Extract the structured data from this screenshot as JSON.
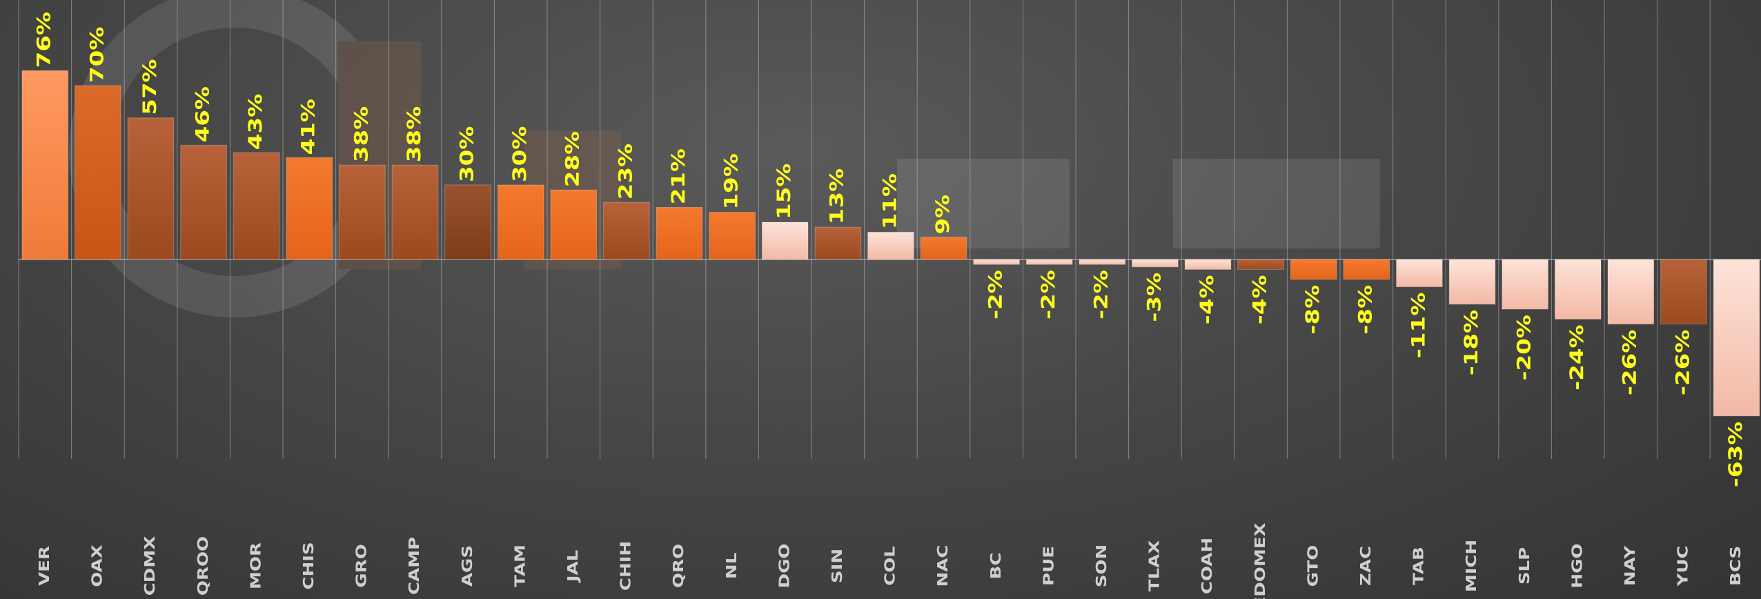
{
  "chart_data": {
    "type": "bar",
    "title": "",
    "xlabel": "",
    "ylabel": "",
    "ylim": [
      -63,
      76
    ],
    "grid": true,
    "label_color": "#ffff1a",
    "category_label_color": "#cfcfcf",
    "categories": [
      "VER",
      "OAX",
      "CDMX",
      "QROO",
      "MOR",
      "CHIS",
      "GRO",
      "CAMP",
      "AGS",
      "TAM",
      "JAL",
      "CHIH",
      "QRO",
      "NL",
      "DGO",
      "SIN",
      "COL",
      "NAC",
      "BC",
      "PUE",
      "SON",
      "TLAX",
      "COAH",
      "EDOMEX",
      "GTO",
      "ZAC",
      "TAB",
      "MICH",
      "SLP",
      "HGO",
      "NAY",
      "YUC",
      "BCS"
    ],
    "values": [
      76,
      70,
      57,
      46,
      43,
      41,
      38,
      38,
      30,
      30,
      28,
      23,
      21,
      19,
      15,
      13,
      11,
      9,
      -2,
      -2,
      -2,
      -3,
      -4,
      -4,
      -8,
      -8,
      -11,
      -18,
      -20,
      -24,
      -26,
      -26,
      -63
    ],
    "value_labels": [
      "76%",
      "70%",
      "57%",
      "46%",
      "43%",
      "41%",
      "38%",
      "38%",
      "30%",
      "30%",
      "28%",
      "23%",
      "21%",
      "19%",
      "15%",
      "13%",
      "11%",
      "9%",
      "-2%",
      "-2%",
      "-2%",
      "-3%",
      "-4%",
      "-4%",
      "-8%",
      "-8%",
      "-11%",
      "-18%",
      "-20%",
      "-24%",
      "-26%",
      "-26%",
      "-63%"
    ],
    "bar_styles": [
      "light-orange",
      "mid-orange",
      "brown",
      "brown",
      "brown",
      "orange",
      "brown",
      "brown",
      "dark-brown",
      "orange",
      "orange",
      "brown",
      "orange",
      "orange",
      "pale",
      "brown",
      "pale",
      "orange",
      "pale",
      "pale",
      "pale",
      "pale",
      "pale",
      "brown",
      "orange",
      "orange",
      "pale",
      "pale",
      "pale",
      "pale",
      "pale",
      "brown",
      "pale"
    ],
    "colors": {
      "light-orange": [
        "#ff9a62",
        "#f07a38"
      ],
      "mid-orange": [
        "#dc6a2a",
        "#c85514"
      ],
      "orange": [
        "#f37a2e",
        "#e5641c"
      ],
      "brown": [
        "#b8623a",
        "#9a4a1e"
      ],
      "dark-brown": [
        "#9a5230",
        "#7e3c18"
      ],
      "pale": [
        "#fde3d8",
        "#f3b9a6"
      ]
    }
  }
}
